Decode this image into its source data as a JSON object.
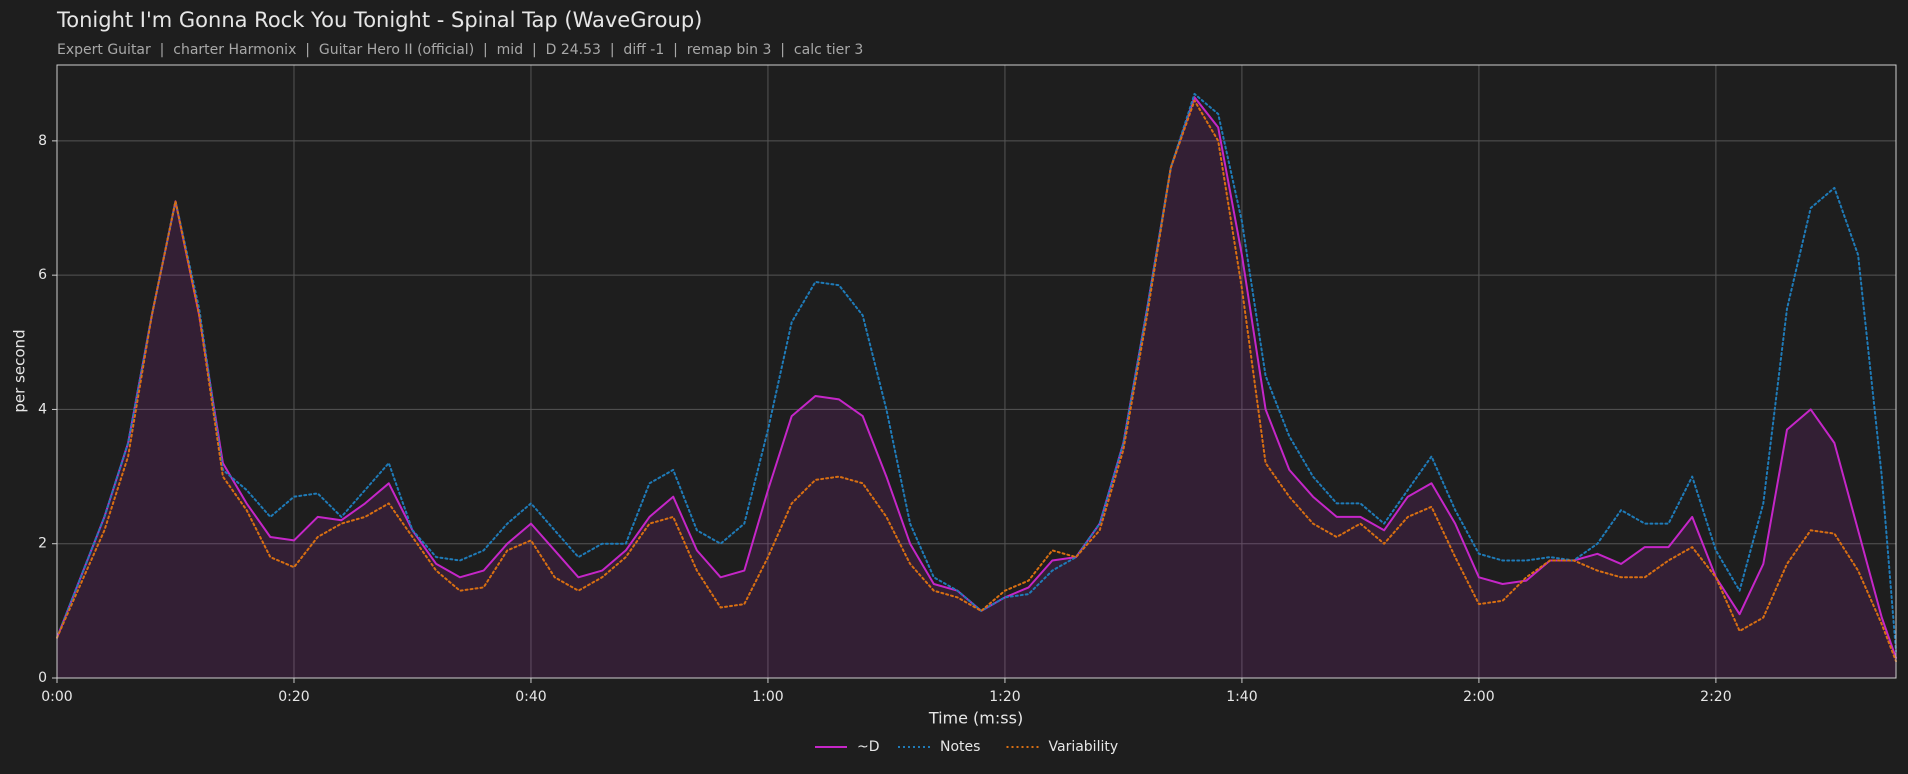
{
  "chart_data": {
    "type": "line",
    "title": "Tonight I'm Gonna Rock You Tonight - Spinal Tap (WaveGroup)",
    "subtitle": "Expert Guitar  |  charter Harmonix  |  Guitar Hero II (official)  |  mid  |  D 24.53  |  diff -1  |  remap bin 3  |  calc tier 3",
    "xlabel": "Time (m:ss)",
    "ylabel": "per second",
    "x": [
      0,
      2,
      4,
      6,
      8,
      10,
      12,
      14,
      16,
      18,
      20,
      22,
      24,
      26,
      28,
      30,
      32,
      34,
      36,
      38,
      40,
      42,
      44,
      46,
      48,
      50,
      52,
      54,
      56,
      58,
      60,
      62,
      64,
      66,
      68,
      70,
      72,
      74,
      76,
      78,
      80,
      82,
      84,
      86,
      88,
      90,
      92,
      94,
      96,
      98,
      100,
      102,
      104,
      106,
      108,
      110,
      112,
      114,
      116,
      118,
      120,
      122,
      124,
      126,
      128,
      130,
      132,
      134,
      136,
      138,
      140,
      142,
      144,
      146,
      148,
      150,
      152,
      154,
      155.2
    ],
    "series": [
      {
        "name": "~D",
        "color": "#c526c8",
        "dash": "solid",
        "fill": true,
        "values": [
          0.6,
          1.5,
          2.4,
          3.5,
          5.4,
          7.1,
          5.4,
          3.2,
          2.6,
          2.1,
          2.05,
          2.4,
          2.35,
          2.6,
          2.9,
          2.2,
          1.7,
          1.5,
          1.6,
          2.0,
          2.3,
          1.9,
          1.5,
          1.6,
          1.9,
          2.4,
          2.7,
          1.9,
          1.5,
          1.6,
          2.8,
          3.9,
          4.2,
          4.15,
          3.9,
          3.0,
          2.0,
          1.4,
          1.3,
          1.0,
          1.2,
          1.35,
          1.75,
          1.8,
          2.3,
          3.5,
          5.5,
          7.6,
          8.65,
          8.2,
          6.3,
          4.0,
          3.1,
          2.7,
          2.4,
          2.4,
          2.2,
          2.7,
          2.9,
          2.3,
          1.5,
          1.4,
          1.45,
          1.75,
          1.75,
          1.85,
          1.7,
          1.95,
          1.95,
          2.4,
          1.5,
          0.95,
          1.7,
          3.7,
          4.0,
          3.5,
          2.2,
          0.9,
          0.3
        ]
      },
      {
        "name": "Notes",
        "color": "#1f7bb8",
        "dash": "dotted",
        "values": [
          0.6,
          1.5,
          2.4,
          3.5,
          5.4,
          7.1,
          5.5,
          3.1,
          2.8,
          2.4,
          2.7,
          2.75,
          2.4,
          2.8,
          3.2,
          2.2,
          1.8,
          1.75,
          1.9,
          2.3,
          2.6,
          2.2,
          1.8,
          2.0,
          2.0,
          2.9,
          3.1,
          2.2,
          2.0,
          2.3,
          3.7,
          5.3,
          5.9,
          5.85,
          5.4,
          4.0,
          2.3,
          1.5,
          1.3,
          1.0,
          1.2,
          1.25,
          1.6,
          1.8,
          2.3,
          3.5,
          5.5,
          7.6,
          8.7,
          8.4,
          6.8,
          4.5,
          3.6,
          3.0,
          2.6,
          2.6,
          2.3,
          2.8,
          3.3,
          2.5,
          1.85,
          1.75,
          1.75,
          1.8,
          1.75,
          2.0,
          2.5,
          2.3,
          2.3,
          3.0,
          1.9,
          1.3,
          2.6,
          5.5,
          7.0,
          7.3,
          6.3,
          3.0,
          0.4
        ]
      },
      {
        "name": "Variability",
        "color": "#d86f12",
        "dash": "dotted",
        "values": [
          0.6,
          1.4,
          2.2,
          3.3,
          5.4,
          7.1,
          5.4,
          3.0,
          2.5,
          1.8,
          1.65,
          2.1,
          2.3,
          2.4,
          2.6,
          2.1,
          1.6,
          1.3,
          1.35,
          1.9,
          2.05,
          1.5,
          1.3,
          1.5,
          1.8,
          2.3,
          2.4,
          1.6,
          1.05,
          1.1,
          1.8,
          2.6,
          2.95,
          3.0,
          2.9,
          2.4,
          1.7,
          1.3,
          1.2,
          1.0,
          1.3,
          1.45,
          1.9,
          1.8,
          2.2,
          3.4,
          5.4,
          7.6,
          8.6,
          8.0,
          5.8,
          3.2,
          2.7,
          2.3,
          2.1,
          2.3,
          2.0,
          2.4,
          2.55,
          1.8,
          1.1,
          1.15,
          1.5,
          1.75,
          1.75,
          1.6,
          1.5,
          1.5,
          1.75,
          1.95,
          1.5,
          0.7,
          0.9,
          1.7,
          2.2,
          2.15,
          1.6,
          0.8,
          0.25
        ]
      }
    ],
    "xlim": [
      0,
      155.2
    ],
    "ylim": [
      0,
      9.13
    ],
    "xticks": [
      {
        "value": 0,
        "label": "0:00"
      },
      {
        "value": 20,
        "label": "0:20"
      },
      {
        "value": 40,
        "label": "0:40"
      },
      {
        "value": 60,
        "label": "1:00"
      },
      {
        "value": 80,
        "label": "1:20"
      },
      {
        "value": 100,
        "label": "1:40"
      },
      {
        "value": 120,
        "label": "2:00"
      },
      {
        "value": 140,
        "label": "2:20"
      }
    ],
    "yticks": [
      0,
      2,
      4,
      6,
      8
    ],
    "grid": true,
    "legend": "bottom"
  }
}
